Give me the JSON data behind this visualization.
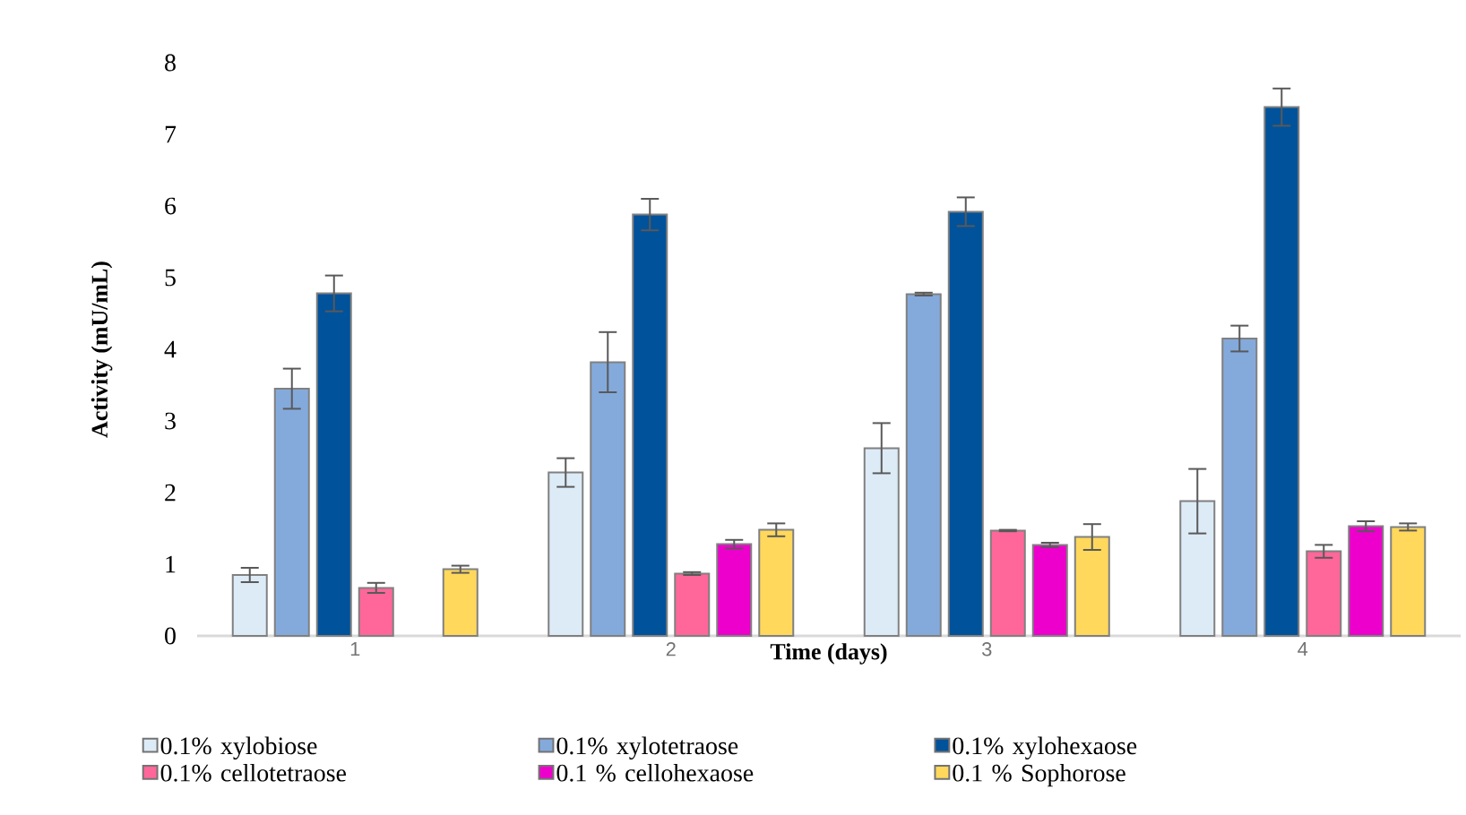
{
  "chart_data": {
    "type": "bar",
    "xlabel": "Time (days)",
    "ylabel": "Activity (mU/mL)",
    "categories": [
      "1",
      "2",
      "3",
      "4"
    ],
    "ylim": [
      0,
      8
    ],
    "yticks": [
      0,
      1,
      2,
      3,
      4,
      5,
      6,
      7,
      8
    ],
    "legend": "bottom",
    "series": [
      {
        "name": "0.1% xylobiose",
        "color": "#ddebf7",
        "values": [
          0.85,
          2.28,
          2.62,
          1.88
        ],
        "errors": [
          0.1,
          0.2,
          0.35,
          0.45
        ]
      },
      {
        "name": "0.1% xylotetraose",
        "color": "#84aadc",
        "values": [
          3.45,
          3.82,
          4.77,
          4.15
        ],
        "errors": [
          0.28,
          0.42,
          0.02,
          0.18
        ]
      },
      {
        "name": "0.1% xylohexaose",
        "color": "#00529b",
        "values": [
          4.78,
          5.88,
          5.92,
          7.38
        ],
        "errors": [
          0.25,
          0.22,
          0.2,
          0.26
        ]
      },
      {
        "name": "0.1% cellotetraose",
        "color": "#ff6699",
        "values": [
          0.67,
          0.87,
          1.47,
          1.18
        ],
        "errors": [
          0.07,
          0.02,
          0.01,
          0.09
        ]
      },
      {
        "name": "0.1 % cellohexaose",
        "color": "#ee00cc",
        "values": [
          null,
          1.28,
          1.27,
          1.53
        ],
        "errors": [
          null,
          0.06,
          0.03,
          0.07
        ]
      },
      {
        "name": "0.1 % Sophorose",
        "color": "#ffd85c",
        "values": [
          0.93,
          1.48,
          1.38,
          1.52
        ],
        "errors": [
          0.05,
          0.09,
          0.18,
          0.05
        ]
      }
    ]
  }
}
